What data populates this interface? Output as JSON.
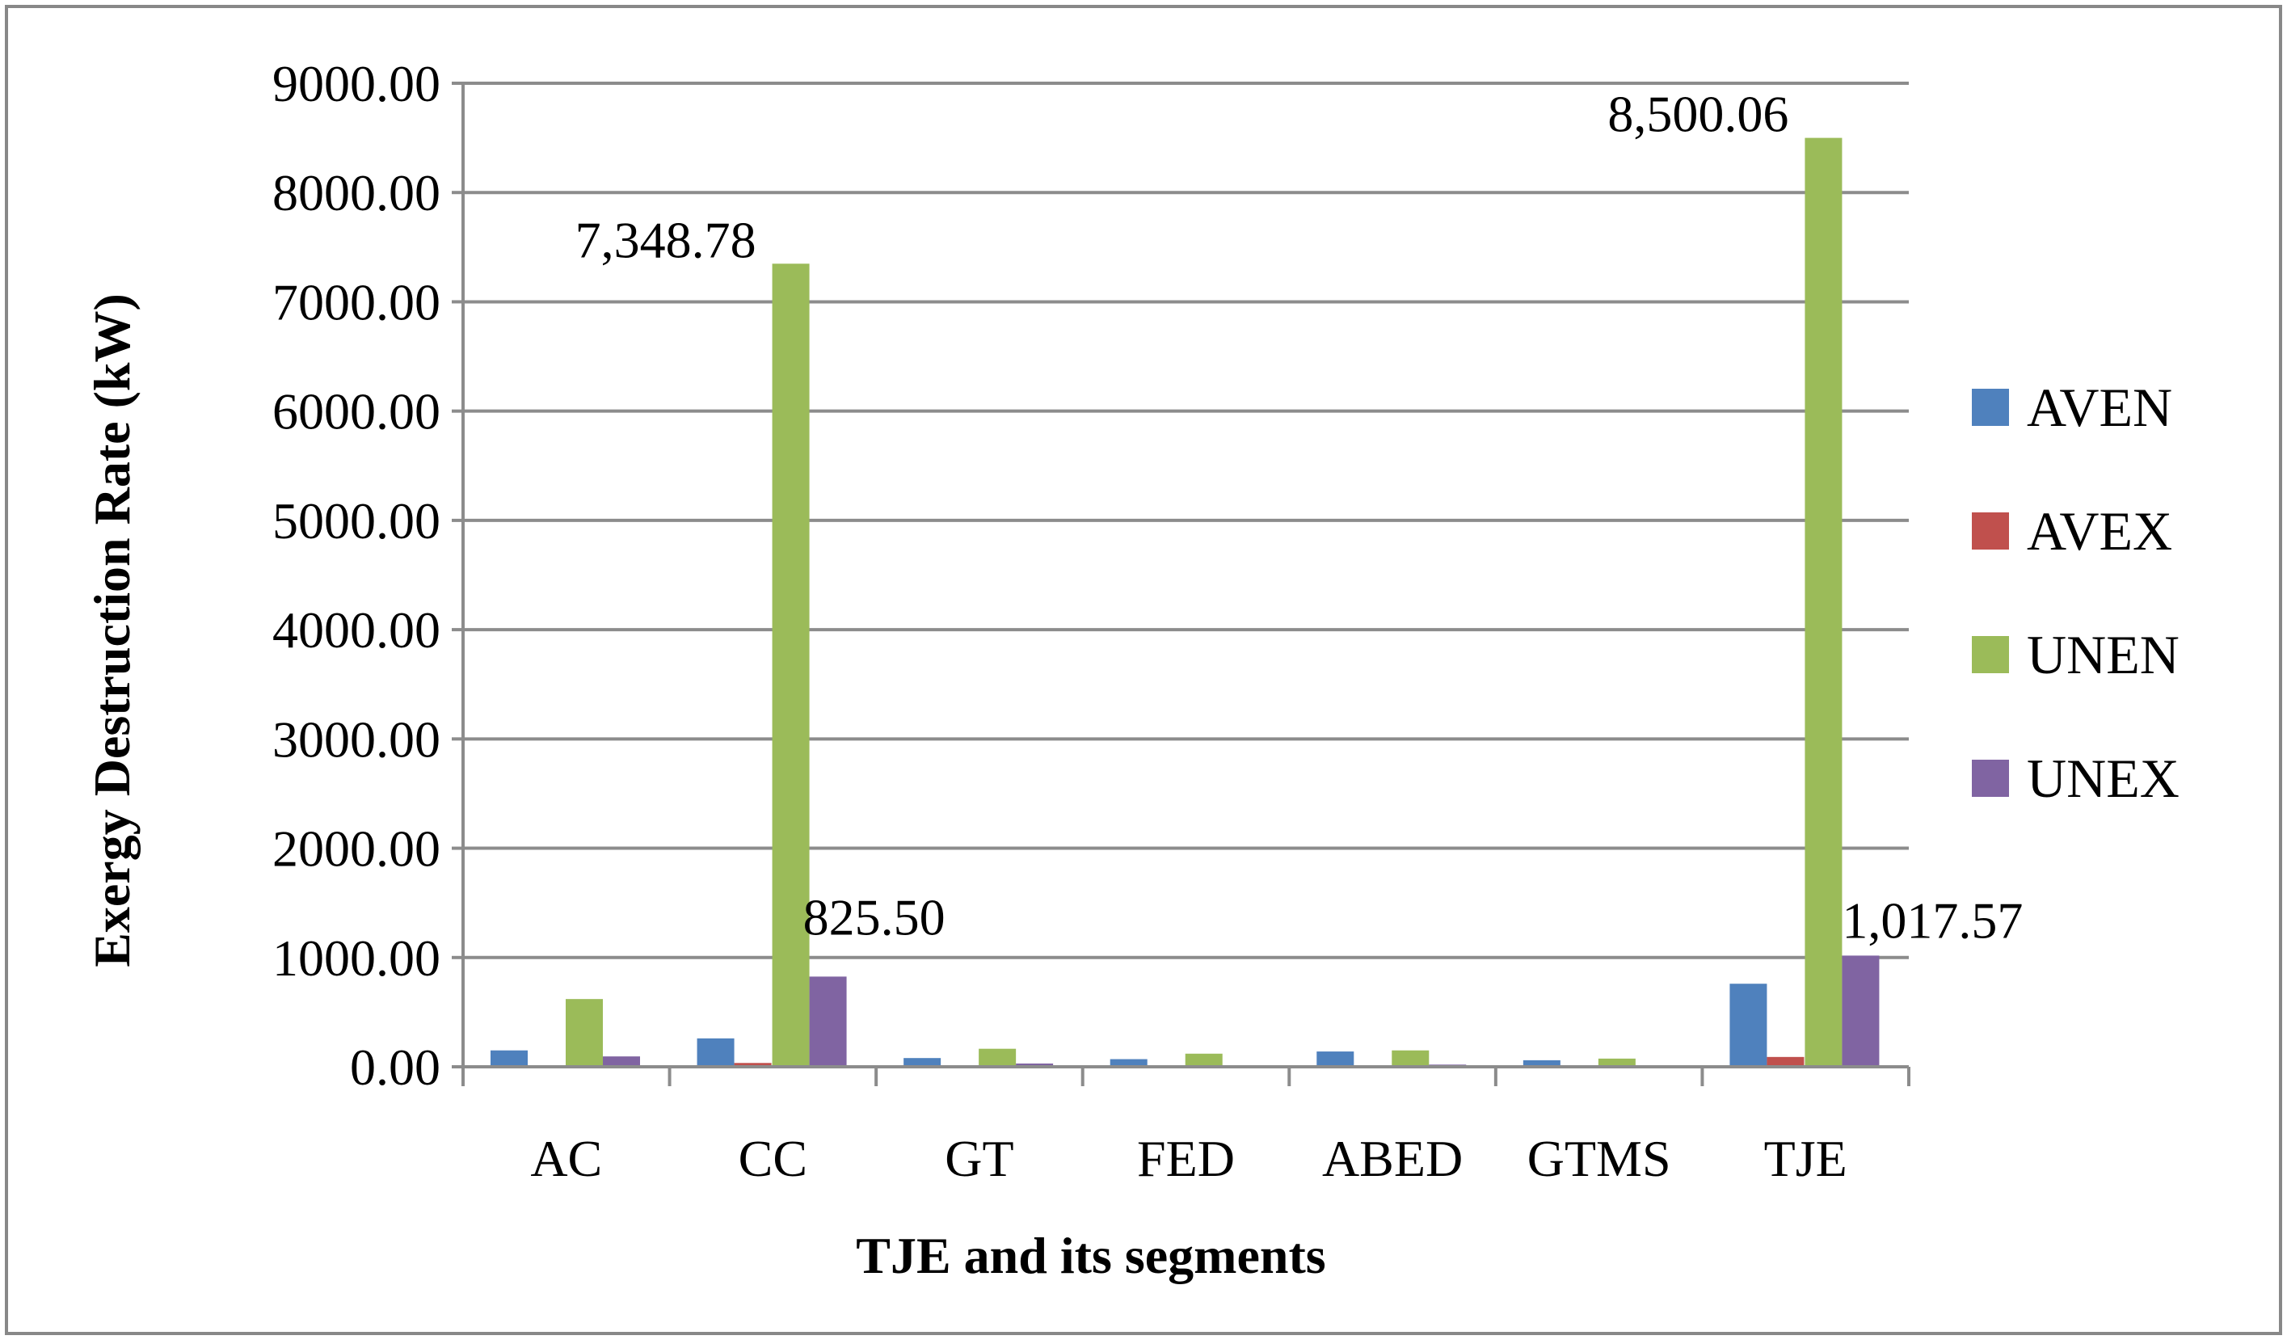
{
  "chart_data": {
    "type": "bar",
    "title": "",
    "xlabel": "TJE and its segments",
    "ylabel": "Exergy Destruction Rate (kW)",
    "ylim": [
      0,
      9000
    ],
    "ytick_step": 1000,
    "ytick_labels": [
      "0.00",
      "1000.00",
      "2000.00",
      "3000.00",
      "4000.00",
      "5000.00",
      "6000.00",
      "7000.00",
      "8000.00",
      "9000.00"
    ],
    "grid": true,
    "legend_position": "right",
    "categories": [
      "AC",
      "CC",
      "GT",
      "FED",
      "ABED",
      "GTMS",
      "TJE"
    ],
    "series": [
      {
        "name": "AVEN",
        "color": "#4f81bd",
        "values": [
          150,
          260,
          80,
          70,
          140,
          60,
          760
        ]
      },
      {
        "name": "AVEX",
        "color": "#c0504d",
        "values": [
          10,
          35,
          5,
          3,
          8,
          4,
          90
        ]
      },
      {
        "name": "UNEN",
        "color": "#9bbb59",
        "values": [
          620,
          7348.78,
          165,
          120,
          150,
          75,
          8500.06
        ]
      },
      {
        "name": "UNEX",
        "color": "#8064a2",
        "values": [
          95,
          825.5,
          30,
          5,
          20,
          5,
          1017.57
        ]
      }
    ],
    "annotations": [
      {
        "series": 2,
        "category": 1,
        "text": "7,348.78"
      },
      {
        "series": 3,
        "category": 1,
        "text": "825.50"
      },
      {
        "series": 2,
        "category": 6,
        "text": "8,500.06"
      },
      {
        "series": 3,
        "category": 6,
        "text": "1,017.57"
      }
    ]
  }
}
